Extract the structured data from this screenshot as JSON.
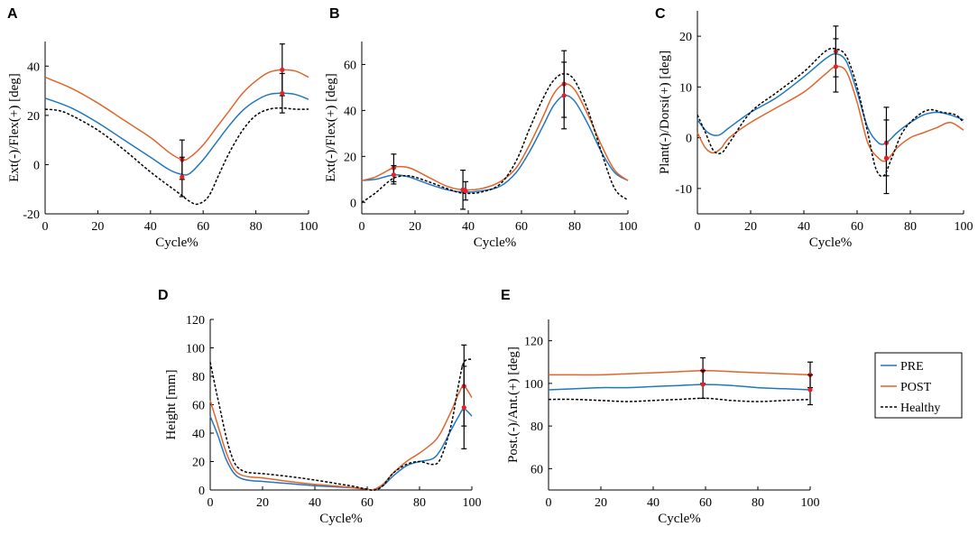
{
  "colors": {
    "pre": "#1f77c0",
    "post": "#e0652d",
    "healthy": "#000000",
    "marker": "#e8202a"
  },
  "legend": {
    "entries": [
      {
        "key": "pre",
        "label": "PRE"
      },
      {
        "key": "post",
        "label": "POST"
      },
      {
        "key": "healthy",
        "label": "Healthy"
      }
    ]
  },
  "chart_data": [
    {
      "id": "A",
      "letter": "A",
      "type": "line",
      "xlabel": "Cycle%",
      "ylabel": "Ext(-)/Flex(+) [deg]",
      "xlim": [
        0,
        100
      ],
      "ylim": [
        -20,
        50
      ],
      "xticks": [
        0,
        20,
        40,
        60,
        80,
        100
      ],
      "yticks": [
        -20,
        0,
        20,
        40
      ],
      "series": [
        {
          "key": "pre",
          "name": "PRE",
          "x": [
            0,
            10,
            20,
            30,
            40,
            47,
            52,
            55,
            60,
            65,
            70,
            75,
            80,
            85,
            90,
            95,
            100
          ],
          "y": [
            27,
            23,
            17,
            10,
            3,
            -2,
            -4,
            -3.5,
            2,
            9,
            16,
            22,
            26,
            28.5,
            29,
            28.5,
            26.5
          ]
        },
        {
          "key": "post",
          "name": "POST",
          "x": [
            0,
            10,
            20,
            30,
            40,
            47,
            52,
            55,
            60,
            65,
            70,
            75,
            80,
            85,
            90,
            95,
            100
          ],
          "y": [
            35.5,
            31,
            25,
            18,
            11,
            5,
            2,
            3,
            8,
            15,
            22,
            29,
            34,
            37.5,
            38.5,
            38,
            35.5
          ]
        },
        {
          "key": "healthy",
          "name": "Healthy",
          "dashed": true,
          "x": [
            0,
            5,
            10,
            20,
            30,
            40,
            50,
            55,
            58,
            62,
            66,
            70,
            75,
            80,
            85,
            90,
            95,
            100
          ],
          "y": [
            22.5,
            22,
            20,
            14,
            6,
            -3,
            -11,
            -15,
            -16,
            -13,
            -4,
            5,
            14,
            20,
            22.5,
            23,
            22.5,
            22.5
          ]
        }
      ],
      "error_bars": [
        {
          "x": 52,
          "y": 2,
          "low": -6,
          "high": 10
        },
        {
          "x": 52,
          "y": -5,
          "low": -13,
          "high": 3
        },
        {
          "x": 90,
          "y": 38.5,
          "low": 28,
          "high": 49
        },
        {
          "x": 90,
          "y": 29,
          "low": 21,
          "high": 37
        }
      ]
    },
    {
      "id": "B",
      "letter": "B",
      "type": "line",
      "xlabel": "Cycle%",
      "ylabel": "Ext(-)/Flex(+) [deg]",
      "xlim": [
        0,
        100
      ],
      "ylim": [
        -5,
        70
      ],
      "xticks": [
        0,
        20,
        40,
        60,
        80,
        100
      ],
      "yticks": [
        0,
        20,
        40,
        60
      ],
      "series": [
        {
          "key": "pre",
          "name": "PRE",
          "x": [
            0,
            5,
            10,
            13,
            18,
            25,
            32,
            38,
            45,
            52,
            58,
            63,
            68,
            72,
            76,
            80,
            85,
            90,
            95,
            100
          ],
          "y": [
            9.5,
            10,
            11.5,
            12,
            11,
            8,
            5.5,
            4.5,
            5,
            7,
            13,
            22,
            33,
            42,
            46.5,
            44,
            34,
            22,
            13,
            9.5
          ]
        },
        {
          "key": "post",
          "name": "POST",
          "x": [
            0,
            5,
            10,
            13,
            18,
            25,
            32,
            38,
            45,
            52,
            58,
            63,
            68,
            72,
            76,
            80,
            85,
            90,
            95,
            100
          ],
          "y": [
            9.5,
            11,
            14,
            15.5,
            15,
            11,
            7,
            5.5,
            6,
            9,
            15,
            25,
            37,
            47,
            51.5,
            49,
            38,
            25,
            14,
            9.5
          ]
        },
        {
          "key": "healthy",
          "name": "Healthy",
          "dashed": true,
          "x": [
            0,
            5,
            10,
            13,
            18,
            25,
            32,
            38,
            45,
            52,
            58,
            63,
            68,
            72,
            76,
            80,
            85,
            90,
            95,
            100
          ],
          "y": [
            0,
            4,
            9,
            11,
            11.5,
            9,
            6,
            4,
            4.5,
            8,
            18,
            32,
            45,
            53,
            56,
            53,
            40,
            22,
            6,
            1
          ]
        }
      ],
      "error_bars": [
        {
          "x": 12,
          "y": 15,
          "low": 9,
          "high": 21
        },
        {
          "x": 12,
          "y": 12,
          "low": 8,
          "high": 16
        },
        {
          "x": 38,
          "y": 5.5,
          "low": -3,
          "high": 14
        },
        {
          "x": 39,
          "y": 5,
          "low": 1,
          "high": 9
        },
        {
          "x": 76,
          "y": 51.5,
          "low": 37,
          "high": 66
        },
        {
          "x": 76,
          "y": 46.5,
          "low": 32,
          "high": 61
        }
      ]
    },
    {
      "id": "C",
      "letter": "C",
      "type": "line",
      "xlabel": "Cycle%",
      "ylabel": "Plant(-)/Dorsi(+) [deg]",
      "xlim": [
        0,
        100
      ],
      "ylim": [
        -15,
        25
      ],
      "xticks": [
        0,
        20,
        40,
        60,
        80,
        100
      ],
      "yticks": [
        -10,
        0,
        10,
        20
      ],
      "series": [
        {
          "key": "pre",
          "name": "PRE",
          "x": [
            0,
            4,
            8,
            12,
            20,
            30,
            40,
            48,
            52,
            56,
            60,
            64,
            68,
            71,
            75,
            80,
            85,
            90,
            95,
            100
          ],
          "y": [
            3.5,
            1,
            0.5,
            2,
            5,
            8,
            12,
            15.5,
            16.5,
            15,
            9,
            2,
            -1,
            -1,
            1,
            3,
            4.5,
            5,
            4.5,
            3.5
          ]
        },
        {
          "key": "post",
          "name": "POST",
          "x": [
            0,
            3,
            6,
            9,
            12,
            20,
            30,
            40,
            48,
            52,
            56,
            60,
            64,
            68,
            71,
            75,
            80,
            85,
            90,
            95,
            100
          ],
          "y": [
            1,
            -2,
            -3,
            -2,
            0,
            3,
            6,
            9,
            12.5,
            14,
            13,
            7,
            -1,
            -4,
            -4.5,
            -2,
            0,
            1,
            2,
            3,
            1.5
          ]
        },
        {
          "key": "healthy",
          "name": "Healthy",
          "dashed": true,
          "x": [
            0,
            3,
            6,
            9,
            12,
            20,
            30,
            40,
            48,
            52,
            56,
            60,
            64,
            67,
            70,
            73,
            77,
            82,
            87,
            92,
            97,
            100
          ],
          "y": [
            4.5,
            1,
            -2.5,
            -3,
            -1,
            5,
            9,
            13,
            17,
            17.5,
            16,
            10,
            1,
            -6,
            -7.5,
            -4,
            1,
            4,
            5.5,
            5,
            4.5,
            3
          ]
        }
      ],
      "error_bars": [
        {
          "x": 52,
          "y": 17,
          "low": 12,
          "high": 22
        },
        {
          "x": 52,
          "y": 14,
          "low": 9,
          "high": 19.5
        },
        {
          "x": 71,
          "y": -1,
          "low": -7.5,
          "high": 6
        },
        {
          "x": 71,
          "y": -4,
          "low": -11,
          "high": 3.5
        }
      ]
    },
    {
      "id": "D",
      "letter": "D",
      "type": "line",
      "xlabel": "Cycle%",
      "ylabel": "Height [mm]",
      "xlim": [
        0,
        100
      ],
      "ylim": [
        0,
        120
      ],
      "xticks": [
        0,
        20,
        40,
        60,
        80,
        100
      ],
      "yticks": [
        0,
        20,
        40,
        60,
        80,
        100,
        120
      ],
      "series": [
        {
          "key": "pre",
          "name": "PRE",
          "x": [
            0,
            3,
            6,
            9,
            12,
            16,
            20,
            30,
            40,
            50,
            55,
            60,
            62,
            66,
            70,
            75,
            80,
            85,
            88,
            92,
            95,
            97,
            100
          ],
          "y": [
            52,
            38,
            22,
            12,
            8,
            6.5,
            6,
            4.5,
            3,
            2,
            1.5,
            0.5,
            0,
            3,
            10,
            17,
            20,
            22,
            28,
            42,
            52,
            57,
            52
          ]
        },
        {
          "key": "post",
          "name": "POST",
          "x": [
            0,
            3,
            6,
            9,
            12,
            16,
            20,
            30,
            40,
            50,
            55,
            60,
            62,
            66,
            70,
            75,
            80,
            85,
            88,
            92,
            95,
            97,
            100
          ],
          "y": [
            63,
            45,
            27,
            15,
            10.5,
            9,
            8.5,
            6,
            4,
            2.5,
            1.5,
            0.5,
            0,
            4,
            12,
            20,
            26,
            33,
            40,
            55,
            68,
            73,
            65
          ]
        },
        {
          "key": "healthy",
          "name": "Healthy",
          "dashed": true,
          "x": [
            0,
            2,
            4,
            6,
            8,
            10,
            13,
            16,
            20,
            30,
            40,
            50,
            55,
            60,
            63,
            66,
            70,
            75,
            80,
            85,
            88,
            92,
            95,
            97,
            100
          ],
          "y": [
            90,
            72,
            55,
            38,
            25,
            17,
            13,
            12,
            11.5,
            9.5,
            7,
            4,
            2.5,
            0.5,
            0,
            3,
            12,
            18,
            20,
            18,
            22,
            45,
            75,
            90,
            92
          ]
        }
      ],
      "error_bars": [
        {
          "x": 97,
          "y": 73,
          "low": 45,
          "high": 102
        },
        {
          "x": 97,
          "y": 58,
          "low": 29,
          "high": 87
        }
      ]
    },
    {
      "id": "E",
      "letter": "E",
      "type": "line",
      "xlabel": "Cycle%",
      "ylabel": "Post.(-)/Ant.(+) [deg]",
      "xlim": [
        0,
        100
      ],
      "ylim": [
        50,
        130
      ],
      "xticks": [
        0,
        20,
        40,
        60,
        80,
        100
      ],
      "yticks": [
        60,
        80,
        100,
        120
      ],
      "series": [
        {
          "key": "pre",
          "name": "PRE",
          "x": [
            0,
            10,
            20,
            30,
            40,
            50,
            60,
            70,
            80,
            90,
            100
          ],
          "y": [
            97,
            97.5,
            98,
            98,
            98.5,
            99,
            99.5,
            99,
            98,
            97.5,
            97
          ]
        },
        {
          "key": "post",
          "name": "POST",
          "x": [
            0,
            10,
            20,
            30,
            40,
            50,
            60,
            70,
            80,
            90,
            100
          ],
          "y": [
            104,
            104,
            104,
            104.5,
            105,
            105.5,
            106,
            105.5,
            105,
            104.5,
            104
          ]
        },
        {
          "key": "healthy",
          "name": "Healthy",
          "dashed": true,
          "x": [
            0,
            10,
            20,
            30,
            40,
            50,
            60,
            70,
            80,
            90,
            100
          ],
          "y": [
            92.5,
            92.5,
            92,
            91.5,
            92,
            92.5,
            93,
            92,
            91.5,
            92,
            92.5
          ]
        }
      ],
      "error_bars": [
        {
          "x": 59,
          "y": 106,
          "low": 100,
          "high": 112
        },
        {
          "x": 59,
          "y": 99.5,
          "low": 93,
          "high": 106
        },
        {
          "x": 100,
          "y": 104,
          "low": 98,
          "high": 110
        },
        {
          "x": 100,
          "y": 97,
          "low": 90,
          "high": 104
        }
      ]
    }
  ]
}
